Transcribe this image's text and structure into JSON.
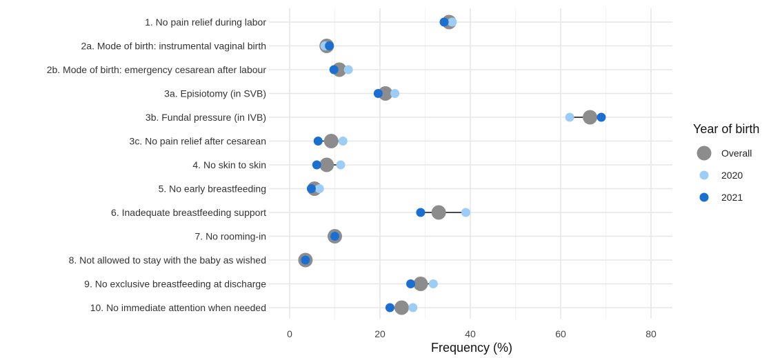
{
  "chart_data": {
    "type": "scatter",
    "xlabel": "Frequency (%)",
    "xlim": [
      -5,
      85
    ],
    "x_ticks": [
      0,
      20,
      40,
      60,
      80
    ],
    "grid": true,
    "legend": {
      "title": "Year of birth",
      "placement": "right",
      "entries": [
        {
          "name": "Overall",
          "color": "#8c8c8c"
        },
        {
          "name": "2020",
          "color": "#9ccdf7"
        },
        {
          "name": "2021",
          "color": "#1a6fd0"
        }
      ]
    },
    "categories": [
      "1. No pain relief during labor",
      "2a. Mode of birth: instrumental vaginal birth",
      "2b. Mode of birth: emergency cesarean after labour",
      "3a. Episiotomy (in SVB)",
      "3b. Fundal pressure (in IVB)",
      "3c. No pain relief after cesarean",
      "4. No skin to skin",
      "5. No early breastfeeding",
      "6. Inadequate breastfeeding support",
      "7. No rooming-in",
      "8. Not allowed to stay with the baby as wished",
      "9. No exclusive breastfeeding at discharge",
      "10. No immediate attention when needed"
    ],
    "series": [
      {
        "name": "Overall",
        "values": [
          35.3,
          8.2,
          11.0,
          21.2,
          66.5,
          9.2,
          8.2,
          5.5,
          33.0,
          10.0,
          3.5,
          29.0,
          24.8
        ]
      },
      {
        "name": "2020",
        "values": [
          36.0,
          7.8,
          13.0,
          23.3,
          62.0,
          11.8,
          11.3,
          6.6,
          39.0,
          10.0,
          3.5,
          31.8,
          27.3
        ]
      },
      {
        "name": "2021",
        "values": [
          34.2,
          8.8,
          9.8,
          19.6,
          69.0,
          6.3,
          6.0,
          4.8,
          29.0,
          10.0,
          3.5,
          26.8,
          22.2
        ]
      }
    ]
  }
}
